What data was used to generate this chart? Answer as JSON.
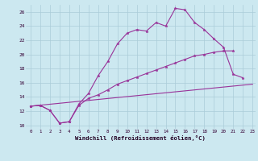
{
  "xlabel": "Windchill (Refroidissement éolien,°C)",
  "bg_color": "#cce8f0",
  "grid_color": "#aaccd8",
  "line_color": "#993399",
  "xlim": [
    -0.5,
    23.3
  ],
  "ylim": [
    9.5,
    27.0
  ],
  "xticks": [
    0,
    1,
    2,
    3,
    4,
    5,
    6,
    7,
    8,
    9,
    10,
    11,
    12,
    13,
    14,
    15,
    16,
    17,
    18,
    19,
    20,
    21,
    22,
    23
  ],
  "yticks": [
    10,
    12,
    14,
    16,
    18,
    20,
    22,
    24,
    26
  ],
  "line1_x": [
    0,
    1,
    2,
    3,
    4,
    5,
    6,
    7,
    8,
    9,
    10,
    11,
    12,
    13,
    14,
    15,
    16,
    17,
    18,
    19,
    20,
    21,
    22
  ],
  "line1_y": [
    12.7,
    12.8,
    12.1,
    10.3,
    10.5,
    13.0,
    14.5,
    17.0,
    19.0,
    21.5,
    23.0,
    23.5,
    23.3,
    24.5,
    24.0,
    26.5,
    26.3,
    24.5,
    23.5,
    22.2,
    21.0,
    17.2,
    16.7
  ],
  "line2_x": [
    0,
    1,
    2,
    3,
    4,
    5,
    6,
    7,
    8,
    9,
    10,
    11,
    12,
    13,
    14,
    15,
    16,
    17,
    18,
    19,
    20,
    21
  ],
  "line2_y": [
    12.7,
    12.8,
    12.1,
    10.3,
    10.5,
    12.8,
    13.8,
    14.3,
    15.0,
    15.8,
    16.3,
    16.8,
    17.3,
    17.8,
    18.3,
    18.8,
    19.3,
    19.8,
    20.0,
    20.3,
    20.5,
    20.5
  ],
  "line3_x": [
    0,
    23
  ],
  "line3_y": [
    12.7,
    15.8
  ]
}
